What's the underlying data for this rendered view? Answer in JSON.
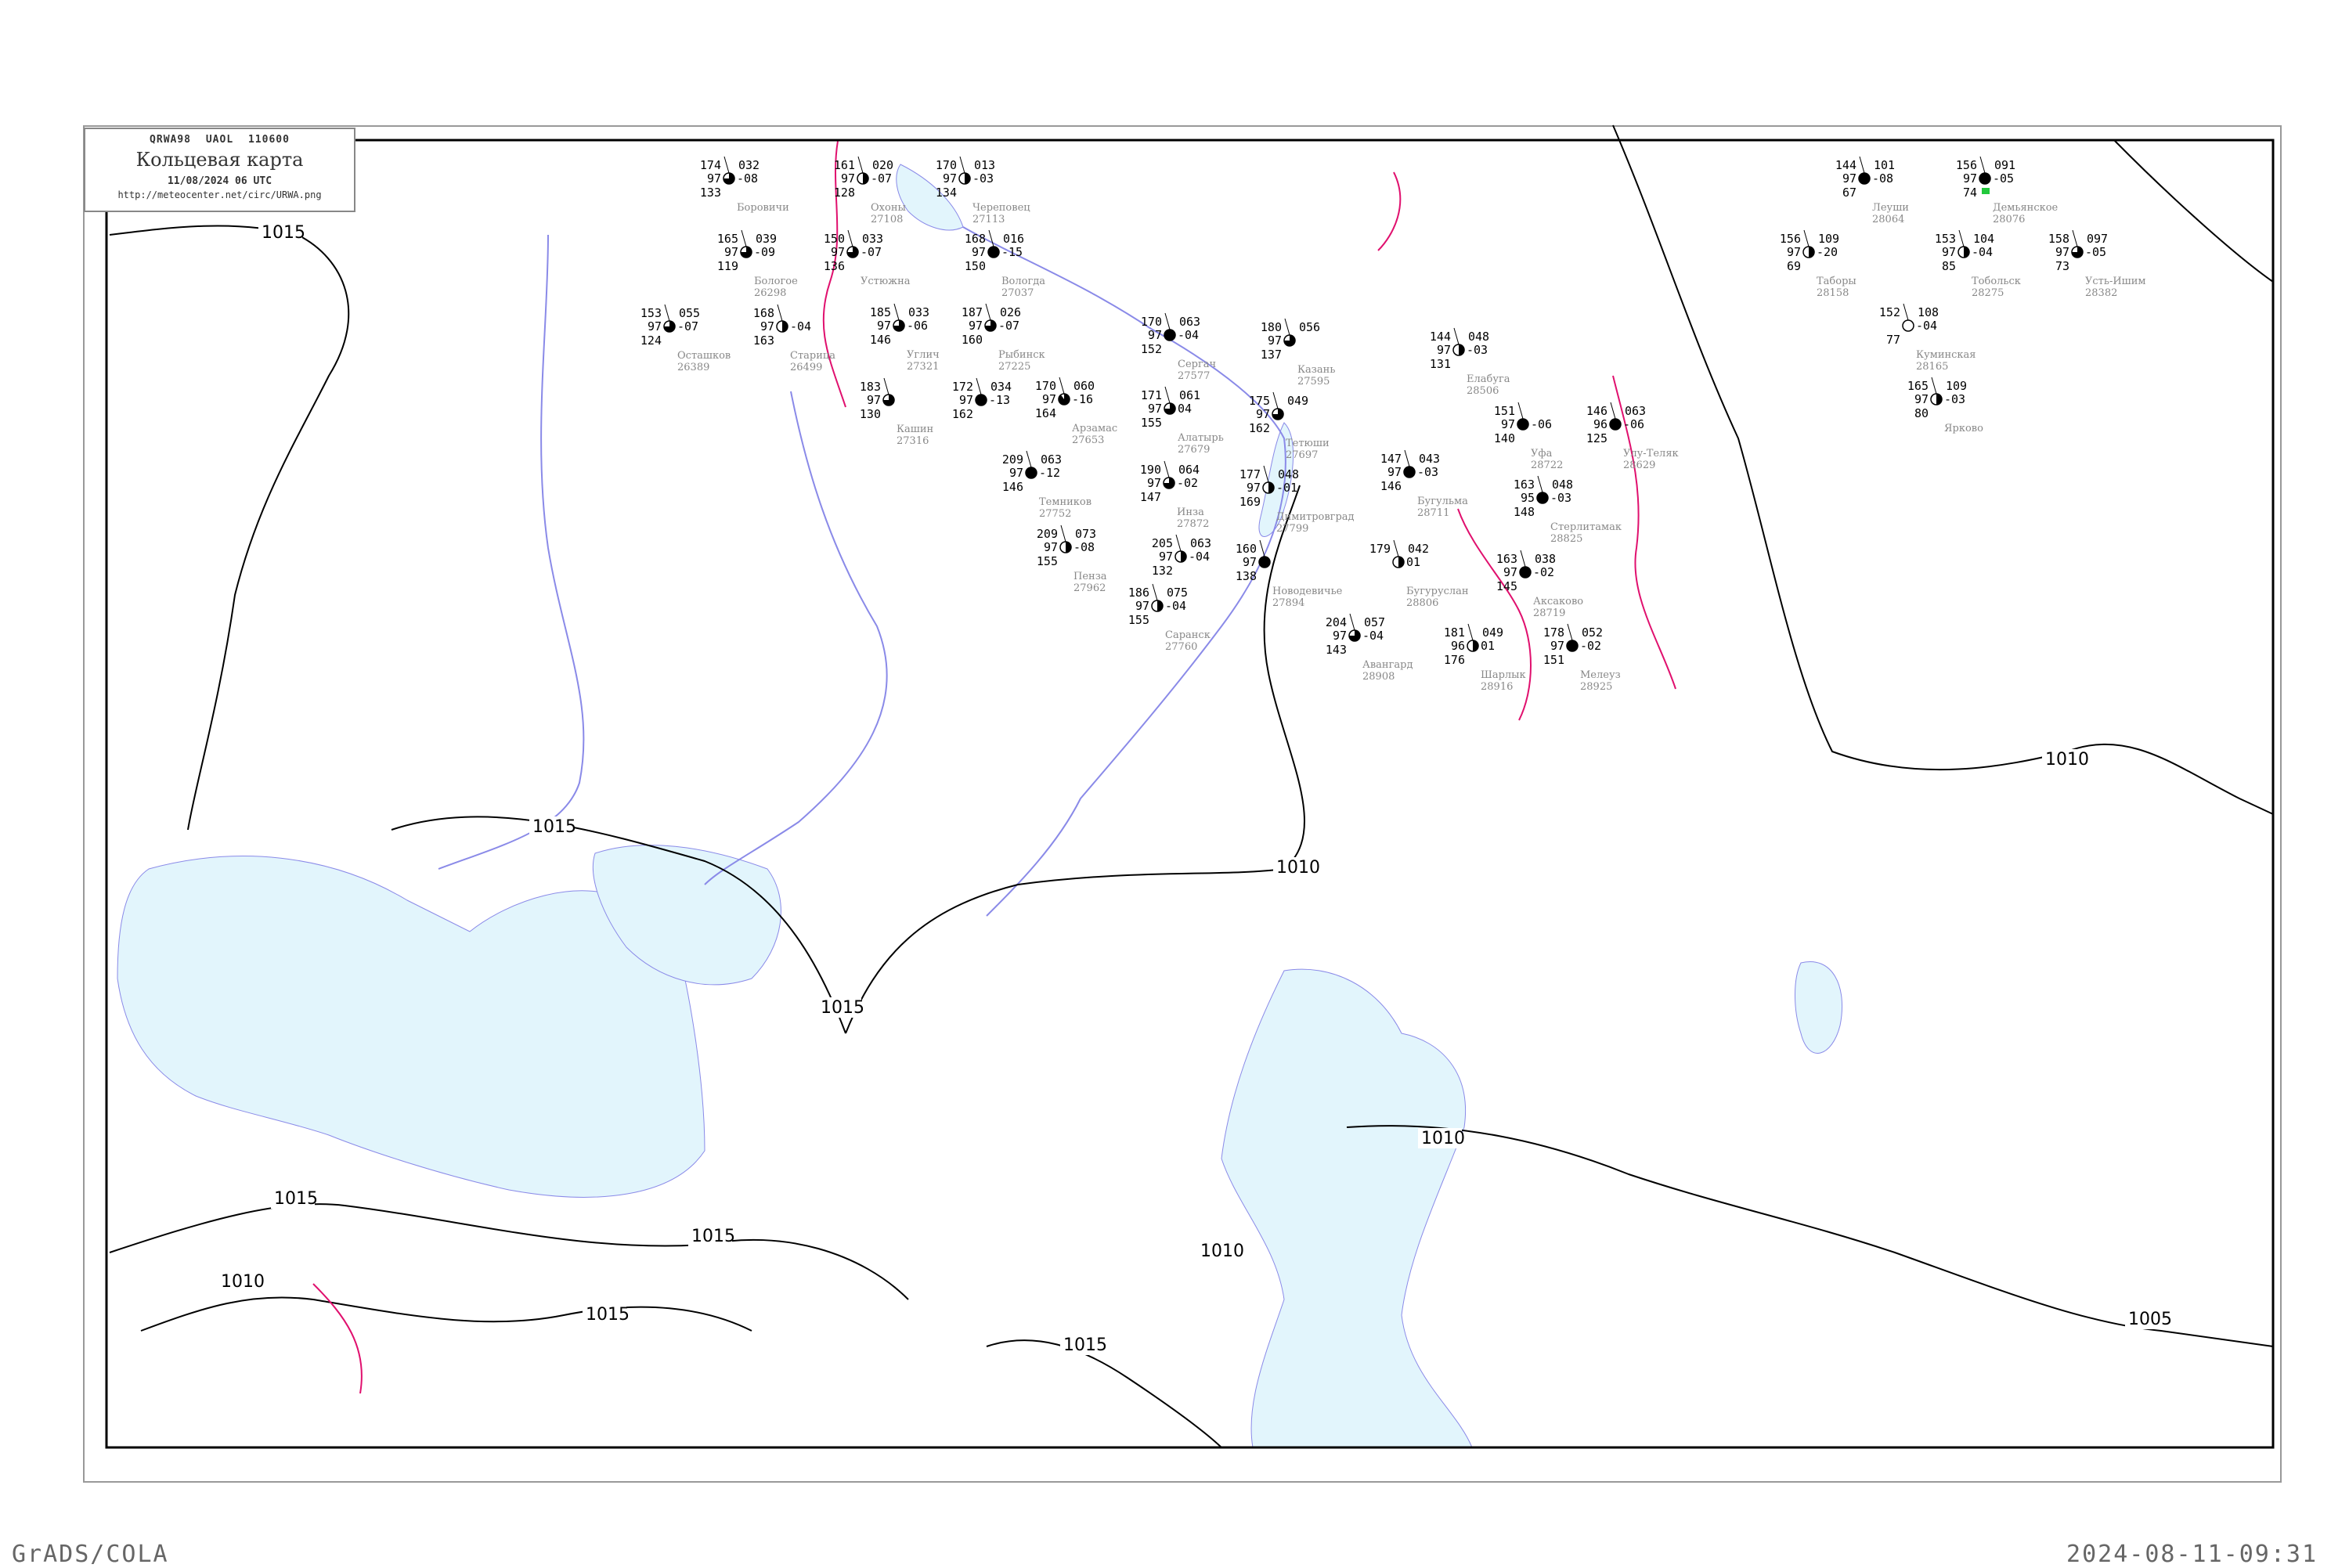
{
  "header": {
    "code": "QRWA98  UAOL  110600",
    "title": "Кольцевая карта",
    "datetime": "11/08/2024 06 UTC",
    "url": "http://meteocenter.net/circ/URWA.png"
  },
  "footer": {
    "left": "GrADS/COLA",
    "right": "2024-08-11-09:31"
  },
  "colors": {
    "isobar": "#000000",
    "front": "#e0106e",
    "water": "#e2f5fc",
    "river": "#8a8ae8",
    "station_name": "#888888",
    "precip_green": "#22c83c",
    "precip_yellow": "#f8f0a0",
    "precip_red": "#f03060"
  },
  "isobar_labels": [
    "1015",
    "1015",
    "1015",
    "1010",
    "1010",
    "1010",
    "1015",
    "1015",
    "1010",
    "1010",
    "1015",
    "1015",
    "1005"
  ],
  "stations": [
    {
      "tl": "170",
      "ml": "97",
      "bl": "164",
      "tr": "060",
      "mr": "-16",
      "name": "Арзамас",
      "id": "27653",
      "cover": 0.9
    },
    {
      "tl": "170",
      "ml": "97",
      "bl": "152",
      "tr": "063",
      "mr": "-04",
      "name": "Сергач",
      "id": "27577",
      "cover": 1
    },
    {
      "tl": "209",
      "ml": "97",
      "bl": "146",
      "tr": "063",
      "mr": "-12",
      "name": "Темников",
      "id": "27752",
      "cover": 1
    },
    {
      "tl": "171",
      "ml": "97",
      "bl": "155",
      "tr": "061",
      "mr": "04",
      "name": "Алатырь",
      "id": "27679",
      "cover": 0.75
    },
    {
      "tl": "180",
      "ml": "97",
      "bl": "137",
      "tr": "056",
      "mr": "",
      "name": "Казань",
      "id": "27595",
      "cover": 0.75
    },
    {
      "tl": "175",
      "ml": "97",
      "bl": "162",
      "tr": "049",
      "mr": "",
      "name": "Тетюши",
      "id": "27697",
      "cover": 0.75
    },
    {
      "tl": "186",
      "ml": "97",
      "bl": "155",
      "tr": "075",
      "mr": "-04",
      "name": "Саранск",
      "id": "27760",
      "cover": 0.5
    },
    {
      "tl": "190",
      "ml": "97",
      "bl": "147",
      "tr": "064",
      "mr": "-02",
      "name": "Инза",
      "id": "27872",
      "cover": 0.75
    },
    {
      "tl": "209",
      "ml": "97",
      "bl": "155",
      "tr": "073",
      "mr": "-08",
      "name": "Пенза",
      "id": "27962",
      "cover": 0.5
    },
    {
      "tl": "205",
      "ml": "97",
      "bl": "132",
      "tr": "063",
      "mr": "-04",
      "name": "",
      "id": "",
      "cover": 0.5
    },
    {
      "tl": "177",
      "ml": "97",
      "bl": "169",
      "tr": "048",
      "mr": "-01",
      "name": "Димитровград",
      "id": "27799",
      "cover": 0.5
    },
    {
      "tl": "160",
      "ml": "97",
      "bl": "138",
      "tr": "",
      "mr": "",
      "name": "Новодевичье",
      "id": "27894",
      "cover": 1
    },
    {
      "tl": "144",
      "ml": "97",
      "bl": "131",
      "tr": "048",
      "mr": "-03",
      "name": "Елабуга",
      "id": "28506",
      "cover": 0.5
    },
    {
      "tl": "147",
      "ml": "97",
      "bl": "146",
      "tr": "043",
      "mr": "-03",
      "name": "Бугульма",
      "id": "28711",
      "cover": 1
    },
    {
      "tl": "163",
      "ml": "97",
      "bl": "145",
      "tr": "038",
      "mr": "-02",
      "name": "Аксаково",
      "id": "28719",
      "cover": 1
    },
    {
      "tl": "179",
      "ml": "",
      "bl": "",
      "tr": "042",
      "mr": "01",
      "name": "Бугуруслан",
      "id": "28806",
      "cover": 0.5
    },
    {
      "tl": "181",
      "ml": "96",
      "bl": "176",
      "tr": "049",
      "mr": "01",
      "name": "Шарлык",
      "id": "28916",
      "cover": 0.5
    },
    {
      "tl": "178",
      "ml": "97",
      "bl": "151",
      "tr": "052",
      "mr": "-02",
      "name": "Мелеуз",
      "id": "28925",
      "cover": 1
    },
    {
      "tl": "151",
      "ml": "97",
      "bl": "140",
      "tr": "",
      "mr": "-06",
      "name": "Уфа",
      "id": "28722",
      "cover": 1
    },
    {
      "tl": "163",
      "ml": "95",
      "bl": "148",
      "tr": "048",
      "mr": "-03",
      "name": "Стерлитамак",
      "id": "28825",
      "cover": 1
    },
    {
      "tl": "204",
      "ml": "97",
      "bl": "143",
      "tr": "057",
      "mr": "-04",
      "name": "Авангард",
      "id": "28908",
      "cover": 0.75
    },
    {
      "tl": "146",
      "ml": "96",
      "bl": "125",
      "tr": "063",
      "mr": "-06",
      "name": "Улу-Теляк",
      "id": "28629",
      "cover": 1
    },
    {
      "tl": "174",
      "ml": "97",
      "bl": "133",
      "tr": "032",
      "mr": "-08",
      "name": "Боровичи",
      "id": "",
      "cover": 0.75
    },
    {
      "tl": "165",
      "ml": "97",
      "bl": "119",
      "tr": "039",
      "mr": "-09",
      "name": "Бологое",
      "id": "26298",
      "cover": 0.75
    },
    {
      "tl": "161",
      "ml": "97",
      "bl": "128",
      "tr": "020",
      "mr": "-07",
      "name": "Охоны",
      "id": "27108",
      "cover": 0.5
    },
    {
      "tl": "170",
      "ml": "97",
      "bl": "134",
      "tr": "013",
      "mr": "-03",
      "name": "Череповец",
      "id": "27113",
      "cover": 0.5
    },
    {
      "tl": "168",
      "ml": "97",
      "bl": "150",
      "tr": "016",
      "mr": "-15",
      "name": "Вологда",
      "id": "27037",
      "cover": 1
    },
    {
      "tl": "150",
      "ml": "97",
      "bl": "136",
      "tr": "033",
      "mr": "-07",
      "name": "Устюжна",
      "id": "",
      "cover": 0.75
    },
    {
      "tl": "187",
      "ml": "97",
      "bl": "160",
      "tr": "026",
      "mr": "-07",
      "name": "Рыбинск",
      "id": "27225",
      "cover": 0.75
    },
    {
      "tl": "185",
      "ml": "97",
      "bl": "146",
      "tr": "033",
      "mr": "-06",
      "name": "Углич",
      "id": "27321",
      "cover": 0.75
    },
    {
      "tl": "183",
      "ml": "97",
      "bl": "130",
      "tr": "",
      "mr": "",
      "name": "Кашин",
      "id": "27316",
      "cover": 0.75
    },
    {
      "tl": "153",
      "ml": "97",
      "bl": "124",
      "tr": "055",
      "mr": "-07",
      "name": "Осташков",
      "id": "26389",
      "cover": 0.75
    },
    {
      "tl": "168",
      "ml": "97",
      "bl": "163",
      "tr": "",
      "mr": "-04",
      "name": "Старица",
      "id": "26499",
      "cover": 0.5
    },
    {
      "tl": "172",
      "ml": "97",
      "bl": "162",
      "tr": "034",
      "mr": "-13",
      "name": "",
      "id": "",
      "cover": 1
    },
    {
      "tl": "144",
      "ml": "97",
      "bl": "67",
      "tr": "101",
      "mr": "-08",
      "name": "Леуши",
      "id": "28064",
      "cover": 1
    },
    {
      "tl": "156",
      "ml": "97",
      "bl": "74",
      "tr": "091",
      "mr": "-05",
      "name": "Демьянское",
      "id": "28076",
      "cover": 1
    },
    {
      "tl": "156",
      "ml": "97",
      "bl": "69",
      "tr": "109",
      "mr": "-20",
      "name": "Таборы",
      "id": "28158",
      "cover": 0.5
    },
    {
      "tl": "153",
      "ml": "97",
      "bl": "85",
      "tr": "104",
      "mr": "-04",
      "name": "Тобольск",
      "id": "28275",
      "cover": 0.5
    },
    {
      "tl": "158",
      "ml": "97",
      "bl": "73",
      "tr": "097",
      "mr": "-05",
      "name": "Усть-Ишим",
      "id": "28382",
      "cover": 0.75
    },
    {
      "tl": "165",
      "ml": "97",
      "bl": "80",
      "tr": "109",
      "mr": "-03",
      "name": "Ярково",
      "id": "",
      "cover": 0.5
    },
    {
      "tl": "152",
      "ml": "",
      "bl": "77",
      "tr": "108",
      "mr": "-04",
      "name": "Куминская",
      "id": "28165",
      "cover": 0
    }
  ]
}
